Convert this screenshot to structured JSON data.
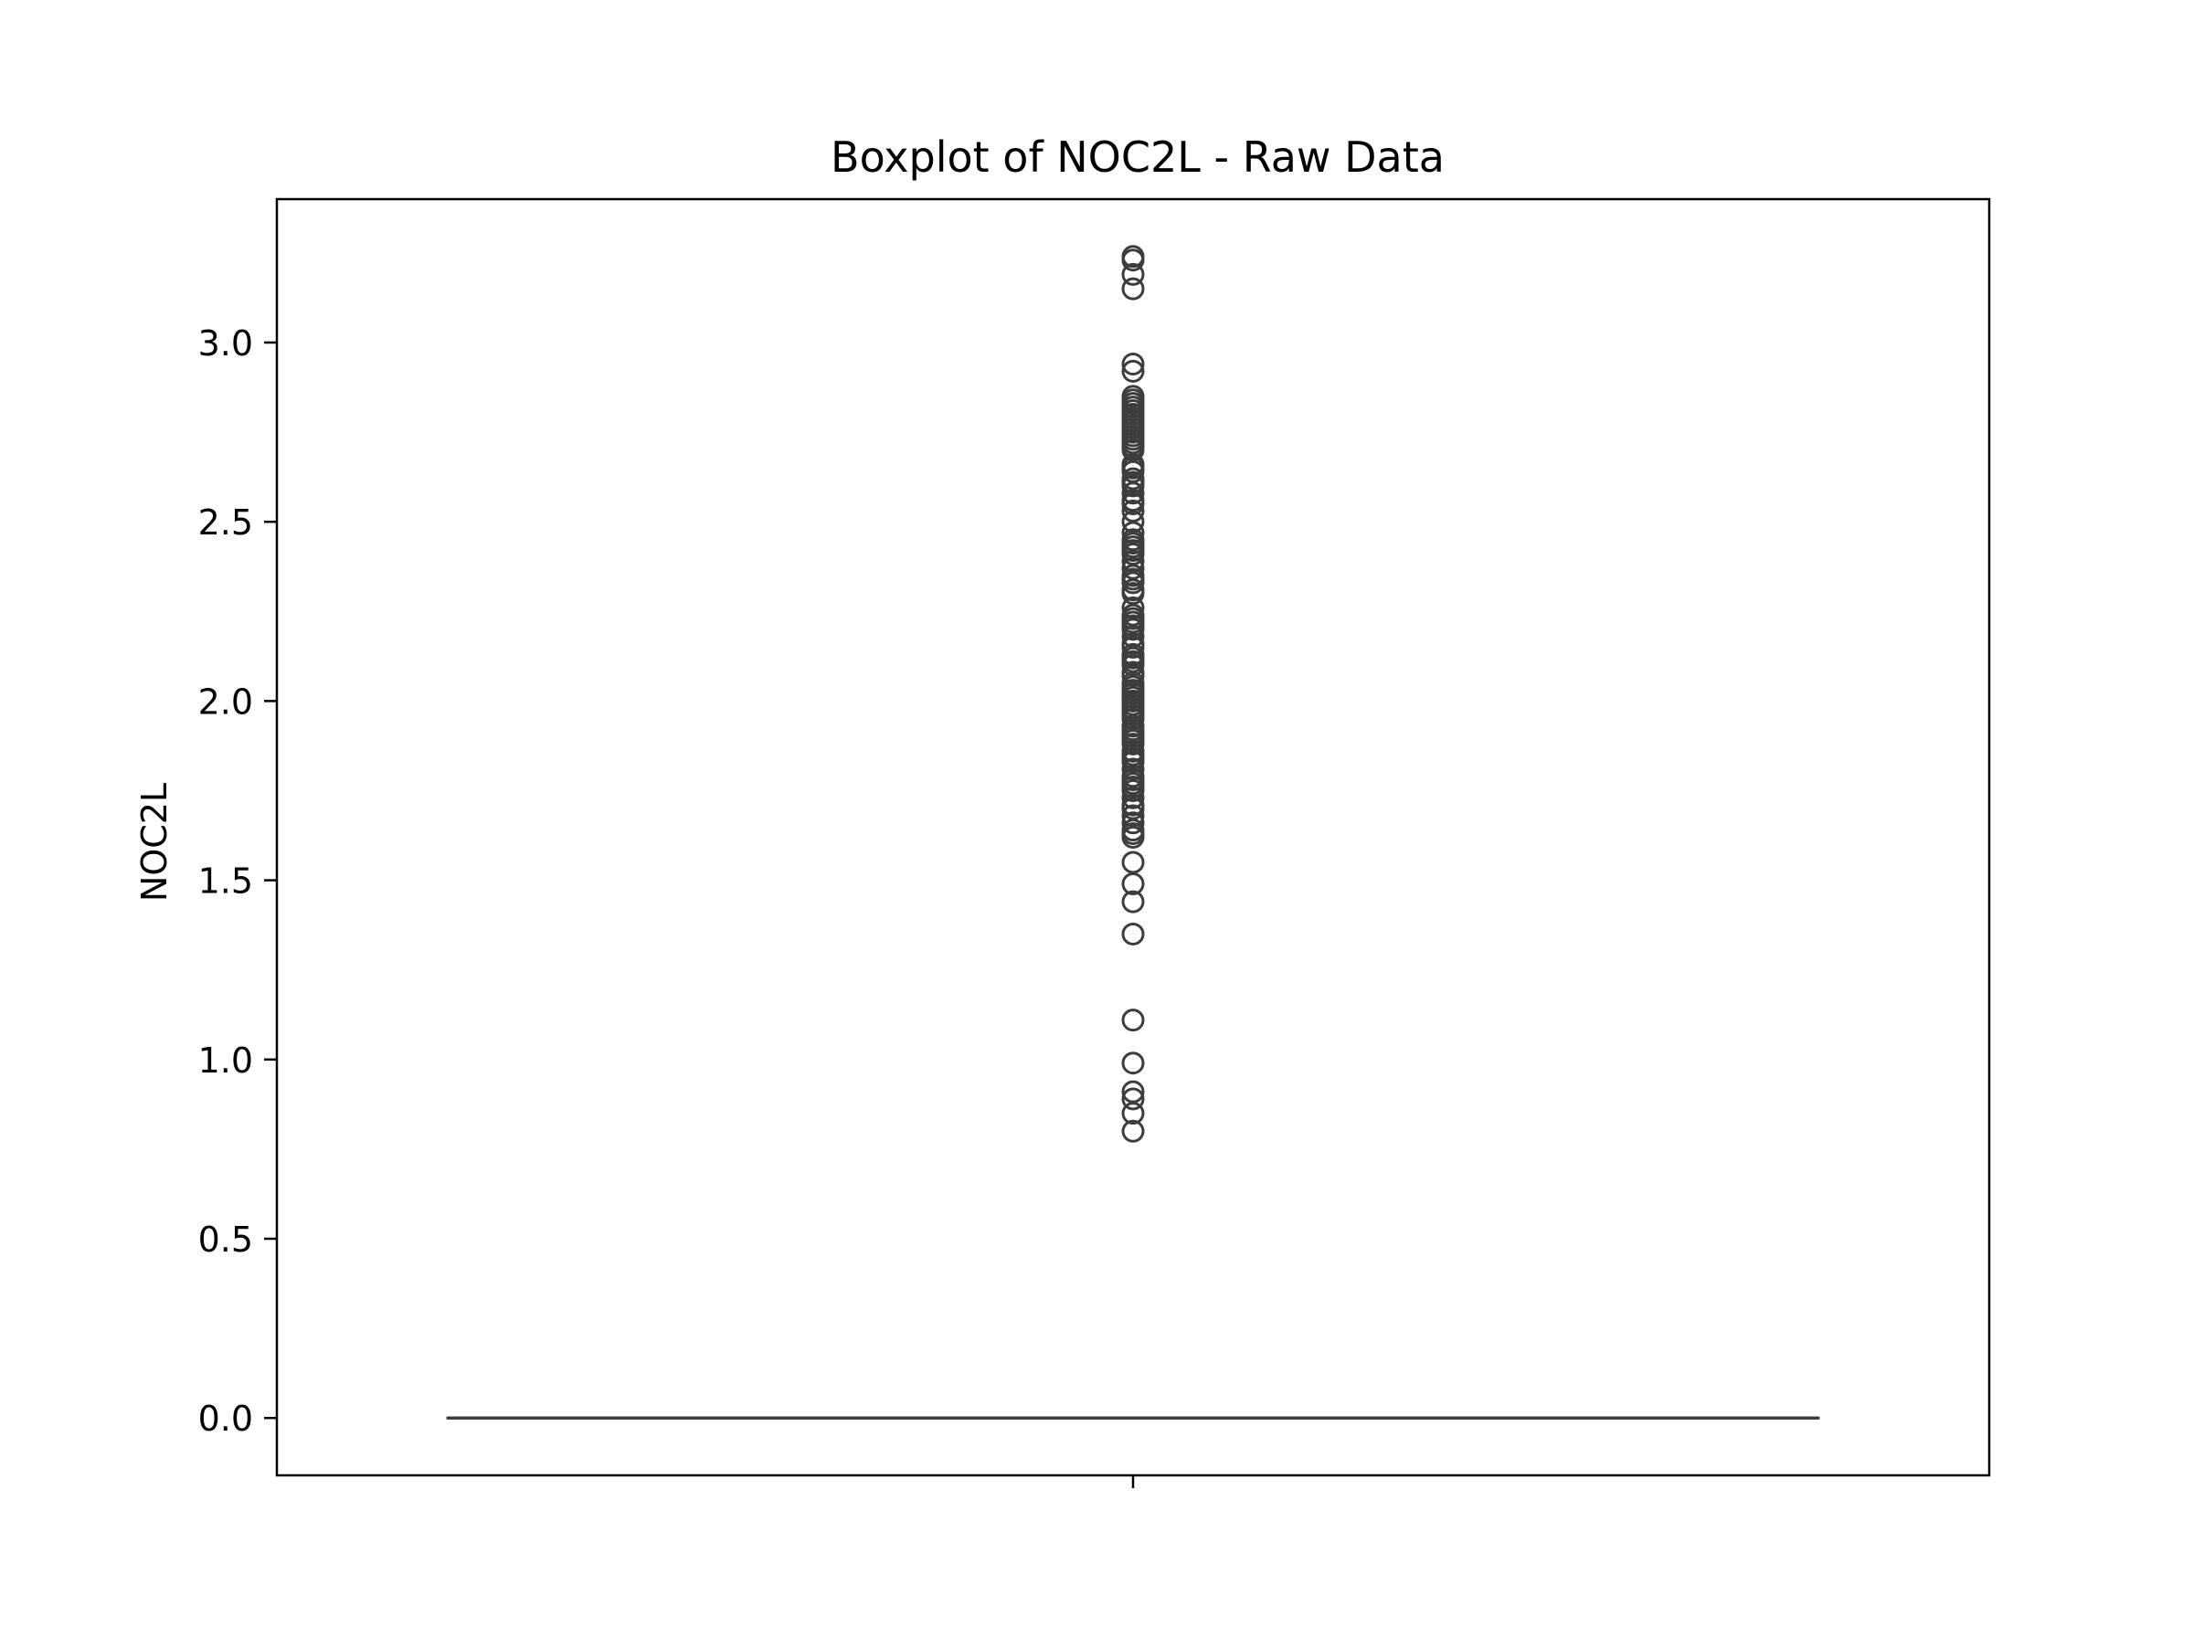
{
  "chart_data": {
    "type": "box",
    "title": "Boxplot of NOC2L - Raw Data",
    "xlabel": "",
    "ylabel": "NOC2L",
    "ylim": [
      -0.16,
      3.4
    ],
    "yticks": [
      0.0,
      0.5,
      1.0,
      1.5,
      2.0,
      2.5,
      3.0
    ],
    "ytick_labels": [
      "0.0",
      "0.5",
      "1.0",
      "1.5",
      "2.0",
      "2.5",
      "3.0"
    ],
    "xticks": [
      ""
    ],
    "grid": false,
    "legend": "none",
    "colors": {
      "box_line": "#3d3d3d",
      "axes": "#000000"
    },
    "box": {
      "whisker_low": 0.0,
      "q1": 0.0,
      "median": 0.0,
      "q3": 0.0,
      "whisker_high": 0.0
    },
    "outliers": [
      3.24,
      3.23,
      3.19,
      3.15,
      2.94,
      2.92,
      2.85,
      2.84,
      2.83,
      2.82,
      2.81,
      2.8,
      2.79,
      2.78,
      2.77,
      2.76,
      2.75,
      2.74,
      2.73,
      2.72,
      2.71,
      2.7,
      2.66,
      2.65,
      2.64,
      2.62,
      2.61,
      2.6,
      2.58,
      2.56,
      2.55,
      2.53,
      2.5,
      2.47,
      2.45,
      2.44,
      2.43,
      2.42,
      2.41,
      2.39,
      2.37,
      2.35,
      2.34,
      2.33,
      2.31,
      2.3,
      2.26,
      2.24,
      2.23,
      2.22,
      2.21,
      2.2,
      2.18,
      2.16,
      2.15,
      2.13,
      2.12,
      2.11,
      2.1,
      2.08,
      2.07,
      2.05,
      2.04,
      2.03,
      2.02,
      2.01,
      2.0,
      1.99,
      1.98,
      1.97,
      1.96,
      1.95,
      1.93,
      1.92,
      1.91,
      1.9,
      1.89,
      1.88,
      1.86,
      1.85,
      1.84,
      1.83,
      1.81,
      1.79,
      1.78,
      1.77,
      1.76,
      1.75,
      1.73,
      1.71,
      1.7,
      1.68,
      1.66,
      1.64,
      1.63,
      1.62,
      1.55,
      1.49,
      1.44,
      1.35,
      1.11,
      0.99,
      0.91,
      0.89,
      0.85,
      0.8
    ]
  }
}
